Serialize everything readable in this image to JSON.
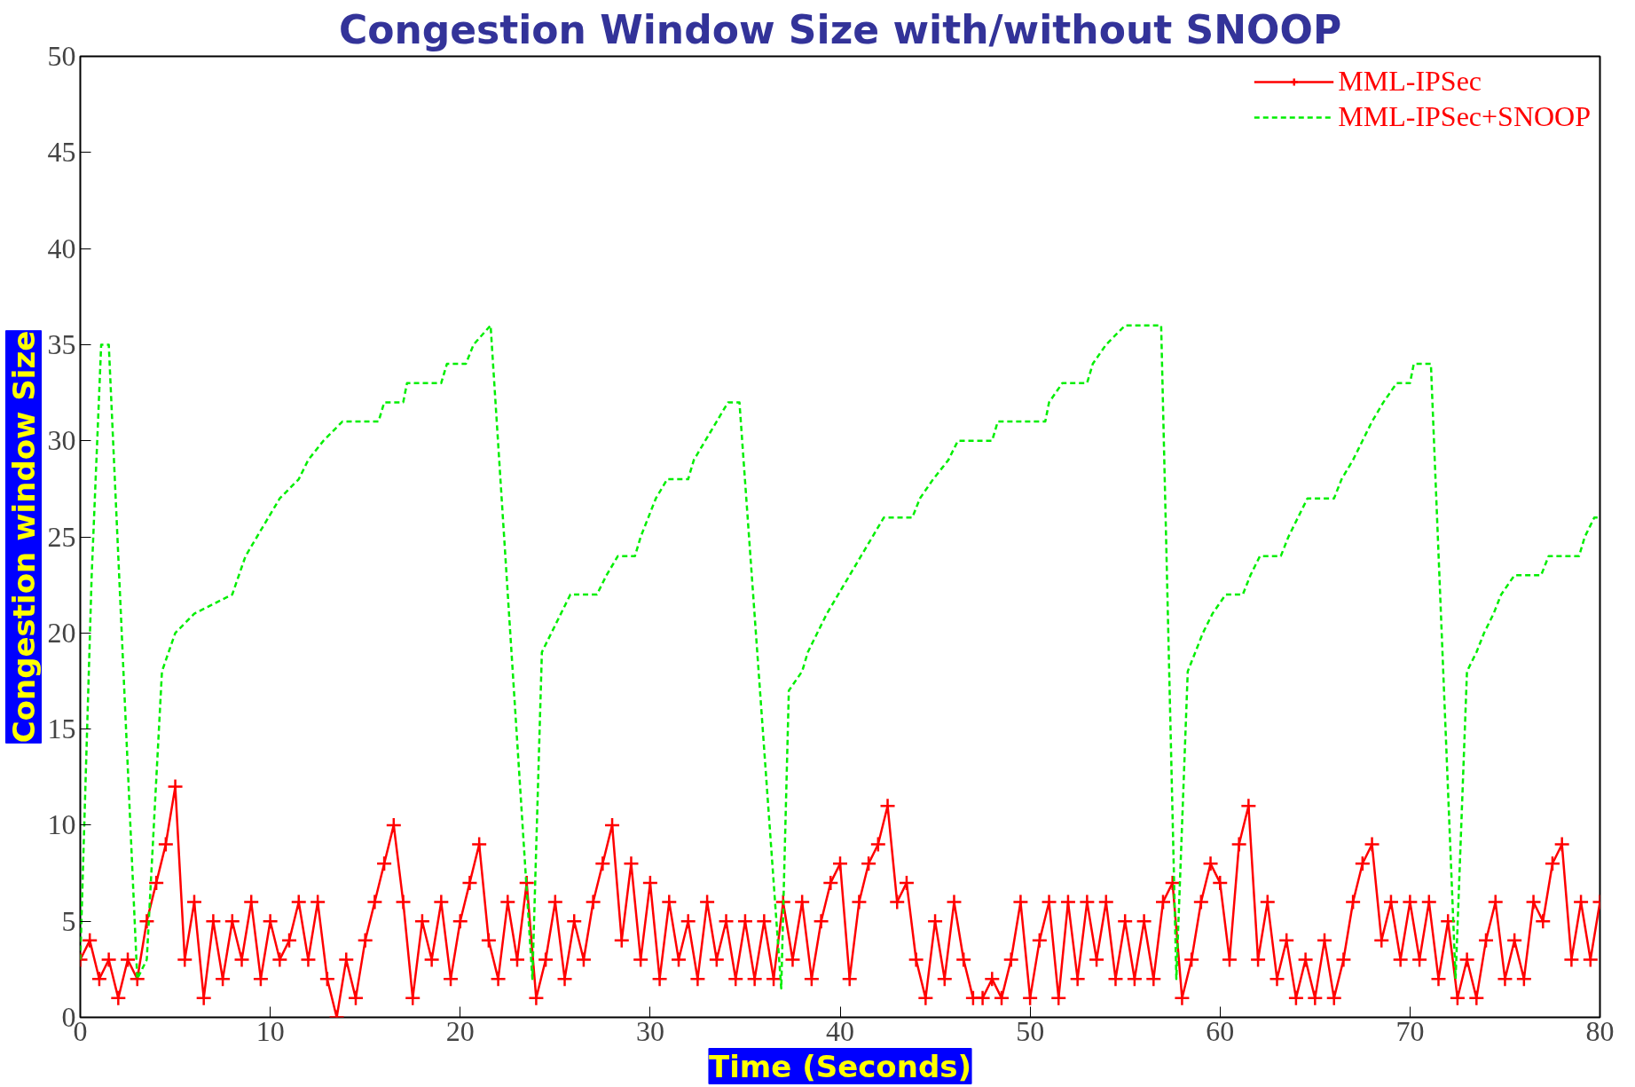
{
  "chart_data": {
    "type": "line",
    "title": "Congestion Window Size with/without SNOOP",
    "xlabel": "Time (Seconds)",
    "ylabel": "Congestion window Size",
    "xlim": [
      0,
      80
    ],
    "ylim": [
      0,
      50
    ],
    "xticks": [
      0,
      10,
      20,
      30,
      40,
      50,
      60,
      70,
      80
    ],
    "yticks": [
      0,
      5,
      10,
      15,
      20,
      25,
      30,
      35,
      40,
      45,
      50
    ],
    "grid": false,
    "legend": "top right",
    "series": [
      {
        "name": "MML-IPSec",
        "color": "#ff0000",
        "marker": "cross",
        "line_style": "solid",
        "x": [
          0,
          0.5,
          1,
          1.5,
          2,
          2.5,
          3,
          3.5,
          4,
          4.5,
          5,
          5.5,
          6,
          6.5,
          7,
          7.5,
          8,
          8.5,
          9,
          9.5,
          10,
          10.5,
          11,
          11.5,
          12,
          12.5,
          13,
          13.5,
          14,
          14.5,
          15,
          15.5,
          16,
          16.5,
          17,
          17.5,
          18,
          18.5,
          19,
          19.5,
          20,
          20.5,
          21,
          21.5,
          22,
          22.5,
          23,
          23.5,
          24,
          24.5,
          25,
          25.5,
          26,
          26.5,
          27,
          27.5,
          28,
          28.5,
          29,
          29.5,
          30,
          30.5,
          31,
          31.5,
          32,
          32.5,
          33,
          33.5,
          34,
          34.5,
          35,
          35.5,
          36,
          36.5,
          37,
          37.5,
          38,
          38.5,
          39,
          39.5,
          40,
          40.5,
          41,
          41.5,
          42,
          42.5,
          43,
          43.5,
          44,
          44.5,
          45,
          45.5,
          46,
          46.5,
          47,
          47.5,
          48,
          48.5,
          49,
          49.5,
          50,
          50.5,
          51,
          51.5,
          52,
          52.5,
          53,
          53.5,
          54,
          54.5,
          55,
          55.5,
          56,
          56.5,
          57,
          57.5,
          58,
          58.5,
          59,
          59.5,
          60,
          60.5,
          61,
          61.5,
          62,
          62.5,
          63,
          63.5,
          64,
          64.5,
          65,
          65.5,
          66,
          66.5,
          67,
          67.5,
          68,
          68.5,
          69,
          69.5,
          70,
          70.5,
          71,
          71.5,
          72,
          72.5,
          73,
          73.5,
          74,
          74.5,
          75,
          75.5,
          76,
          76.5,
          77,
          77.5,
          78,
          78.5,
          79,
          79.5,
          80
        ],
        "values": [
          3,
          4,
          2,
          3,
          1,
          3,
          2,
          5,
          7,
          9,
          12,
          3,
          6,
          1,
          5,
          2,
          5,
          3,
          6,
          2,
          5,
          3,
          4,
          6,
          3,
          6,
          2,
          0,
          3,
          1,
          4,
          6,
          8,
          10,
          6,
          1,
          5,
          3,
          6,
          2,
          5,
          7,
          9,
          4,
          2,
          6,
          3,
          7,
          1,
          3,
          6,
          2,
          5,
          3,
          6,
          8,
          10,
          4,
          8,
          3,
          7,
          2,
          6,
          3,
          5,
          2,
          6,
          3,
          5,
          2,
          5,
          2,
          5,
          2,
          6,
          3,
          6,
          2,
          5,
          7,
          8,
          2,
          6,
          8,
          9,
          11,
          6,
          7,
          3,
          1,
          5,
          2,
          6,
          3,
          1,
          1,
          2,
          1,
          3,
          6,
          1,
          4,
          6,
          1,
          6,
          2,
          6,
          3,
          6,
          2,
          5,
          2,
          5,
          2,
          6,
          7,
          1,
          3,
          6,
          8,
          7,
          3,
          9,
          11,
          3,
          6,
          2,
          4,
          1,
          3,
          1,
          4,
          1,
          3,
          6,
          8,
          9,
          4,
          6,
          3,
          6,
          3,
          6,
          2,
          5,
          1,
          3,
          1,
          4,
          6,
          2,
          4,
          2,
          6,
          5,
          8,
          9,
          3,
          6,
          3,
          6
        ]
      },
      {
        "name": "MML-IPSec+SNOOP",
        "color": "#00ee00",
        "marker": "none",
        "line_style": "dashed",
        "x": [
          0,
          0.6,
          1.1,
          1.5,
          3,
          3.5,
          4.3,
          5,
          6,
          8,
          8.7,
          9.3,
          10.5,
          11.5,
          12,
          12.8,
          13.8,
          15.7,
          16,
          17,
          17.2,
          19,
          19.3,
          20.3,
          20.7,
          21.6,
          23.8,
          24.3,
          24.8,
          25.3,
          25.8,
          27.2,
          27.7,
          28.3,
          29.2,
          29.5,
          29.9,
          30.3,
          30.9,
          32,
          32.3,
          32.9,
          33.5,
          34.1,
          34.7,
          36.9,
          37.3,
          38,
          38.3,
          38.8,
          39.3,
          39.9,
          40.5,
          41.1,
          41.7,
          42.3,
          43.8,
          44.2,
          44.9,
          45.7,
          46.2,
          48,
          48.3,
          50.8,
          51,
          51.7,
          53,
          53.3,
          54,
          55,
          56.9,
          57.7,
          58.3,
          58.7,
          59.1,
          59.6,
          60.3,
          61.2,
          61.6,
          62.1,
          63.2,
          63.6,
          64.1,
          64.6,
          66,
          66.4,
          67,
          67.5,
          68,
          68.6,
          69.3,
          70,
          70.2,
          71.1,
          72.4,
          73,
          73.5,
          73.9,
          74.4,
          74.8,
          75.5,
          76.9,
          77.3,
          78.9,
          79.2,
          79.7,
          80
        ],
        "values": [
          3,
          23,
          35,
          35,
          2,
          3,
          18,
          20,
          21,
          22,
          24,
          25,
          27,
          28,
          29,
          30,
          31,
          31,
          32,
          32,
          33,
          33,
          34,
          34,
          35,
          36,
          2,
          19,
          20,
          21,
          22,
          22,
          23,
          24,
          24,
          25,
          26,
          27,
          28,
          28,
          29,
          30,
          31,
          32,
          32,
          1.5,
          17,
          18,
          19,
          20,
          21,
          22,
          23,
          24,
          25,
          26,
          26,
          27,
          28,
          29,
          30,
          30,
          31,
          31,
          32,
          33,
          33,
          34,
          35,
          36,
          36,
          2,
          18,
          19,
          20,
          21,
          22,
          22,
          23,
          24,
          24,
          25,
          26,
          27,
          27,
          28,
          29,
          30,
          31,
          32,
          33,
          33,
          34,
          34,
          2,
          18,
          19,
          20,
          21,
          22,
          23,
          23,
          24,
          24,
          25,
          26,
          26
        ]
      }
    ]
  }
}
